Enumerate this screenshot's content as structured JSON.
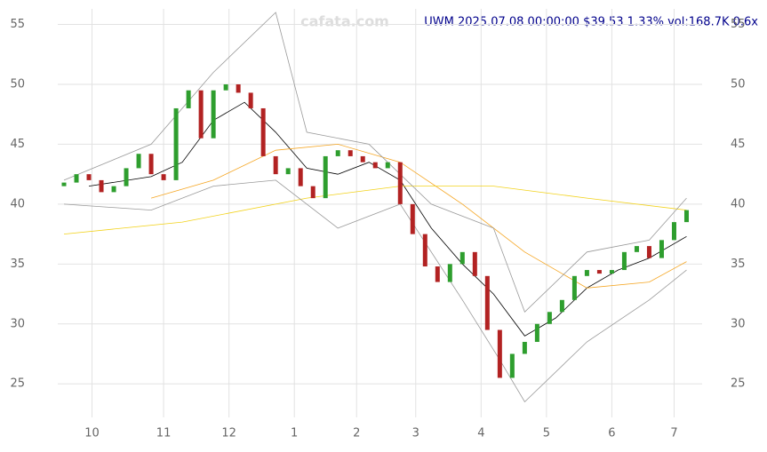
{
  "chart_data": {
    "type": "candlestick",
    "title": "UWM 2025.07.08 00:00:00 $39.53 1.33% vol:168.7K 0.6x",
    "watermark": "cafata.com",
    "x": [
      2,
      6,
      10,
      14,
      18,
      22,
      26,
      30,
      34,
      38,
      42,
      46,
      50,
      54,
      58,
      62,
      66,
      70,
      74,
      78,
      82,
      86,
      90,
      94,
      98,
      102,
      106,
      110,
      114,
      118,
      122,
      126,
      130,
      134,
      138,
      142,
      146,
      150,
      154,
      158,
      162,
      166,
      170,
      174,
      178,
      182,
      186,
      190,
      194,
      198,
      202
    ],
    "open": [
      41.5,
      41.8,
      42.5,
      42,
      41,
      41.5,
      43,
      44.2,
      42.5,
      42,
      48,
      49.5,
      45.5,
      49.5,
      50,
      49.3,
      48,
      44,
      42.5,
      43,
      41.5,
      40.5,
      44,
      44.5,
      44,
      43.5,
      43,
      43.5,
      40,
      37.5,
      34.8,
      33.5,
      35,
      36,
      34,
      29.5,
      25.5,
      27.5,
      28.5,
      30,
      31,
      32,
      34,
      34.5,
      34.2,
      34.5,
      36,
      36.5,
      35.5,
      37,
      38.5
    ],
    "close": [
      41.8,
      42.5,
      42,
      41,
      41.5,
      43,
      44.2,
      42.5,
      42,
      48,
      49.5,
      45.5,
      49.5,
      50,
      49.3,
      48,
      44,
      42.5,
      43,
      41.5,
      40.5,
      44,
      44.5,
      44,
      43.5,
      43,
      43.5,
      40,
      37.5,
      34.8,
      33.5,
      35,
      36,
      34,
      29.5,
      25.5,
      27.5,
      28.5,
      30,
      31,
      32,
      34,
      34.5,
      34.2,
      34.5,
      36,
      36.5,
      35.5,
      37,
      38.5,
      39.5
    ],
    "up_color": "#2e9e2e",
    "down_color": "#b22222",
    "overlays": [
      {
        "color": "#000000",
        "x": [
          10,
          30,
          40,
          50,
          60,
          70,
          80,
          90,
          100,
          110,
          120,
          130,
          140,
          150,
          160,
          170,
          180,
          190,
          202
        ],
        "values": [
          41.5,
          42.3,
          43.5,
          47,
          48.5,
          46,
          43,
          42.5,
          43.5,
          42,
          38,
          35,
          32.5,
          29,
          30.5,
          33,
          34.5,
          35.5,
          37.3
        ]
      },
      {
        "color": "#f5a623",
        "x": [
          30,
          50,
          70,
          90,
          110,
          130,
          150,
          170,
          190,
          202
        ],
        "values": [
          40.5,
          42,
          44.5,
          45,
          43.5,
          40,
          36,
          33,
          33.5,
          35.2
        ]
      },
      {
        "color": "#f2d21b",
        "x": [
          2,
          40,
          80,
          110,
          140,
          170,
          202
        ],
        "values": [
          37.5,
          38.5,
          40.5,
          41.5,
          41.5,
          40.5,
          39.5
        ]
      },
      {
        "color": "#999999",
        "x": [
          2,
          30,
          50,
          70,
          80,
          100,
          120,
          140,
          150,
          170,
          190,
          202
        ],
        "values": [
          42,
          45,
          51,
          56,
          46,
          45,
          40,
          38,
          31,
          36,
          37,
          40.5
        ]
      },
      {
        "color": "#999999",
        "x": [
          2,
          30,
          50,
          70,
          90,
          110,
          130,
          142,
          150,
          170,
          190,
          202
        ],
        "values": [
          40,
          39.5,
          41.5,
          42,
          38,
          40,
          32,
          27,
          23.5,
          28.5,
          32,
          34.5
        ]
      }
    ],
    "xlim": [
      0,
      207
    ],
    "xticks": [
      {
        "value": 11,
        "label": "10"
      },
      {
        "value": 34,
        "label": "11"
      },
      {
        "value": 55,
        "label": "12"
      },
      {
        "value": 76,
        "label": "1"
      },
      {
        "value": 96,
        "label": "2"
      },
      {
        "value": 115,
        "label": "3"
      },
      {
        "value": 136,
        "label": "4"
      },
      {
        "value": 157,
        "label": "5"
      },
      {
        "value": 178,
        "label": "6"
      },
      {
        "value": 198,
        "label": "7"
      }
    ],
    "ylim": [
      22.2,
      56.3
    ],
    "yticks": [
      25,
      30,
      35,
      40,
      45,
      50,
      55
    ],
    "grid": true
  }
}
